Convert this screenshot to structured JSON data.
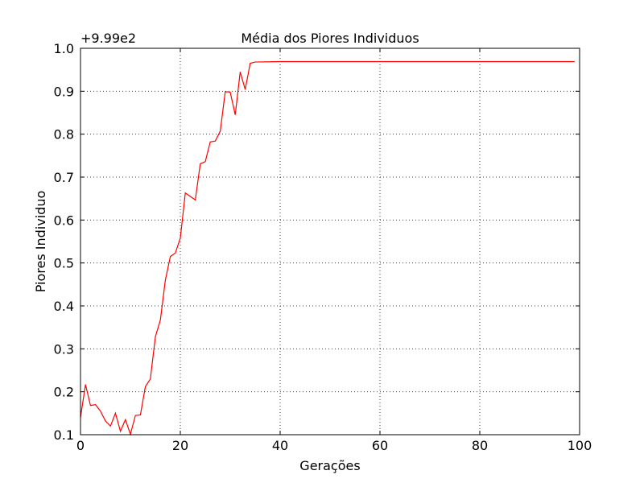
{
  "chart_data": {
    "type": "line",
    "title": "Média dos Piores Individuos",
    "xlabel": "Gerações",
    "ylabel": "Piores Individuo",
    "y_offset_label": "+9.99e2",
    "xlim": [
      0,
      100
    ],
    "ylim": [
      0.1,
      1.0
    ],
    "xticks": [
      0,
      20,
      40,
      60,
      80,
      100
    ],
    "yticks": [
      0.1,
      0.2,
      0.3,
      0.4,
      0.5,
      0.6,
      0.7,
      0.8,
      0.9,
      1.0
    ],
    "xtick_labels": [
      "0",
      "20",
      "40",
      "60",
      "80",
      "100"
    ],
    "ytick_labels": [
      "0.1",
      "0.2",
      "0.3",
      "0.4",
      "0.5",
      "0.6",
      "0.7",
      "0.8",
      "0.9",
      "1.0"
    ],
    "grid": true,
    "line_color": "#ff0000",
    "series": [
      {
        "x": [
          0,
          1,
          2,
          3,
          4,
          5,
          6,
          7,
          8,
          9,
          10,
          11,
          12,
          13,
          14,
          15,
          16,
          17,
          18,
          19,
          20,
          21,
          22,
          23,
          24,
          25,
          26,
          27,
          28,
          29,
          30,
          31,
          32,
          33,
          34,
          35,
          40,
          99
        ],
        "values": [
          0.14,
          0.217,
          0.168,
          0.17,
          0.155,
          0.132,
          0.12,
          0.15,
          0.108,
          0.135,
          0.101,
          0.145,
          0.146,
          0.212,
          0.23,
          0.328,
          0.367,
          0.46,
          0.515,
          0.523,
          0.558,
          0.663,
          0.655,
          0.647,
          0.731,
          0.736,
          0.782,
          0.784,
          0.807,
          0.899,
          0.898,
          0.845,
          0.945,
          0.904,
          0.965,
          0.968,
          0.969,
          0.969
        ]
      }
    ]
  }
}
